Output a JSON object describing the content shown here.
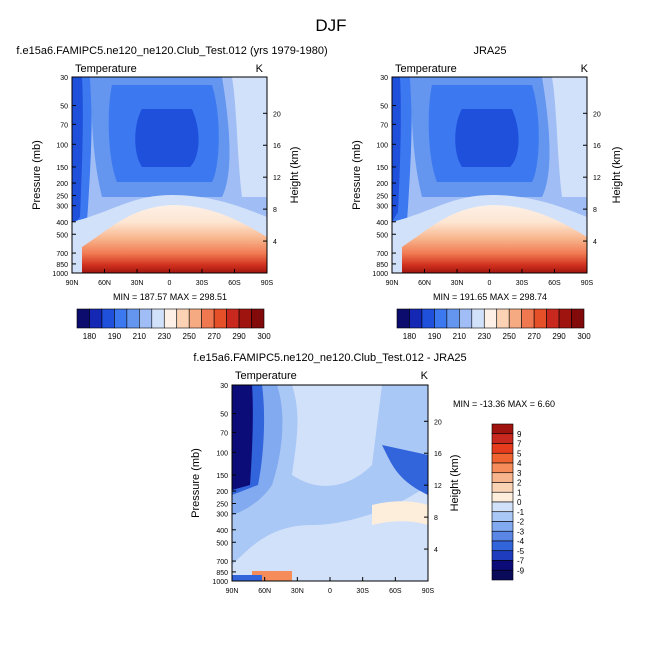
{
  "page_title": "DJF",
  "chart_data": [
    {
      "id": "model",
      "type": "heatmap",
      "title": "f.e15a6.FAMIPC5.ne120_ne120.Club_Test.012 (yrs 1979-1980)",
      "variable": "Temperature",
      "units": "K",
      "ylabel": "Pressure (mb)",
      "ylabel_right": "Height (km)",
      "xticks": [
        "90N",
        "60N",
        "30N",
        "0",
        "30S",
        "60S",
        "90S"
      ],
      "yticks": [
        "30",
        "50",
        "70",
        "100",
        "150",
        "200",
        "250",
        "300",
        "400",
        "500",
        "700",
        "850",
        "1000"
      ],
      "height_ticks": [
        "20",
        "16",
        "12",
        "8",
        "4"
      ],
      "stats": "MIN = 187.57  MAX = 298.51",
      "colorbar_labels": [
        "180",
        "190",
        "210",
        "230",
        "250",
        "270",
        "290",
        "300"
      ],
      "colorbar_colors": [
        "#0c0c6e",
        "#1428b4",
        "#1e50dc",
        "#3c78f0",
        "#6496f0",
        "#a0bef5",
        "#d2e1fa",
        "#fdf0e6",
        "#fbd2b4",
        "#f5aa82",
        "#f07850",
        "#e65028",
        "#c8281e",
        "#a0140f",
        "#820a0a"
      ]
    },
    {
      "id": "obs",
      "type": "heatmap",
      "title": "JRA25",
      "variable": "Temperature",
      "units": "K",
      "ylabel": "Pressure (mb)",
      "ylabel_right": "Height (km)",
      "xticks": [
        "90N",
        "60N",
        "30N",
        "0",
        "30S",
        "60S",
        "90S"
      ],
      "yticks": [
        "30",
        "50",
        "70",
        "100",
        "150",
        "200",
        "250",
        "300",
        "400",
        "500",
        "700",
        "850",
        "1000"
      ],
      "height_ticks": [
        "20",
        "16",
        "12",
        "8",
        "4"
      ],
      "stats": "MIN = 191.65  MAX = 298.74",
      "colorbar_labels": [
        "180",
        "190",
        "210",
        "230",
        "250",
        "270",
        "290",
        "300"
      ]
    },
    {
      "id": "diff",
      "type": "heatmap",
      "title": "f.e15a6.FAMIPC5.ne120_ne120.Club_Test.012 - JRA25",
      "variable": "Temperature",
      "units": "K",
      "ylabel": "Pressure (mb)",
      "ylabel_right": "Height (km)",
      "xticks": [
        "90N",
        "60N",
        "30N",
        "0",
        "30S",
        "60S",
        "90S"
      ],
      "yticks": [
        "30",
        "50",
        "70",
        "100",
        "150",
        "200",
        "250",
        "300",
        "400",
        "500",
        "700",
        "850",
        "1000"
      ],
      "height_ticks": [
        "20",
        "16",
        "12",
        "8",
        "4"
      ],
      "stats": "MIN = -13.36  MAX =   6.60",
      "colorbar_labels": [
        "9",
        "7",
        "5",
        "4",
        "3",
        "2",
        "1",
        "0",
        "-1",
        "-2",
        "-3",
        "-4",
        "-5",
        "-7",
        "-9"
      ],
      "colorbar_colors": [
        "#a0140f",
        "#c8281e",
        "#e63c1e",
        "#f06432",
        "#f58c5a",
        "#f8b48c",
        "#fad2b4",
        "#fdeedc",
        "#d2e1fa",
        "#aac8f5",
        "#82aaf0",
        "#5a87e6",
        "#3264dc",
        "#1e3cbe",
        "#0c0c78",
        "#0a0a5a"
      ]
    }
  ]
}
